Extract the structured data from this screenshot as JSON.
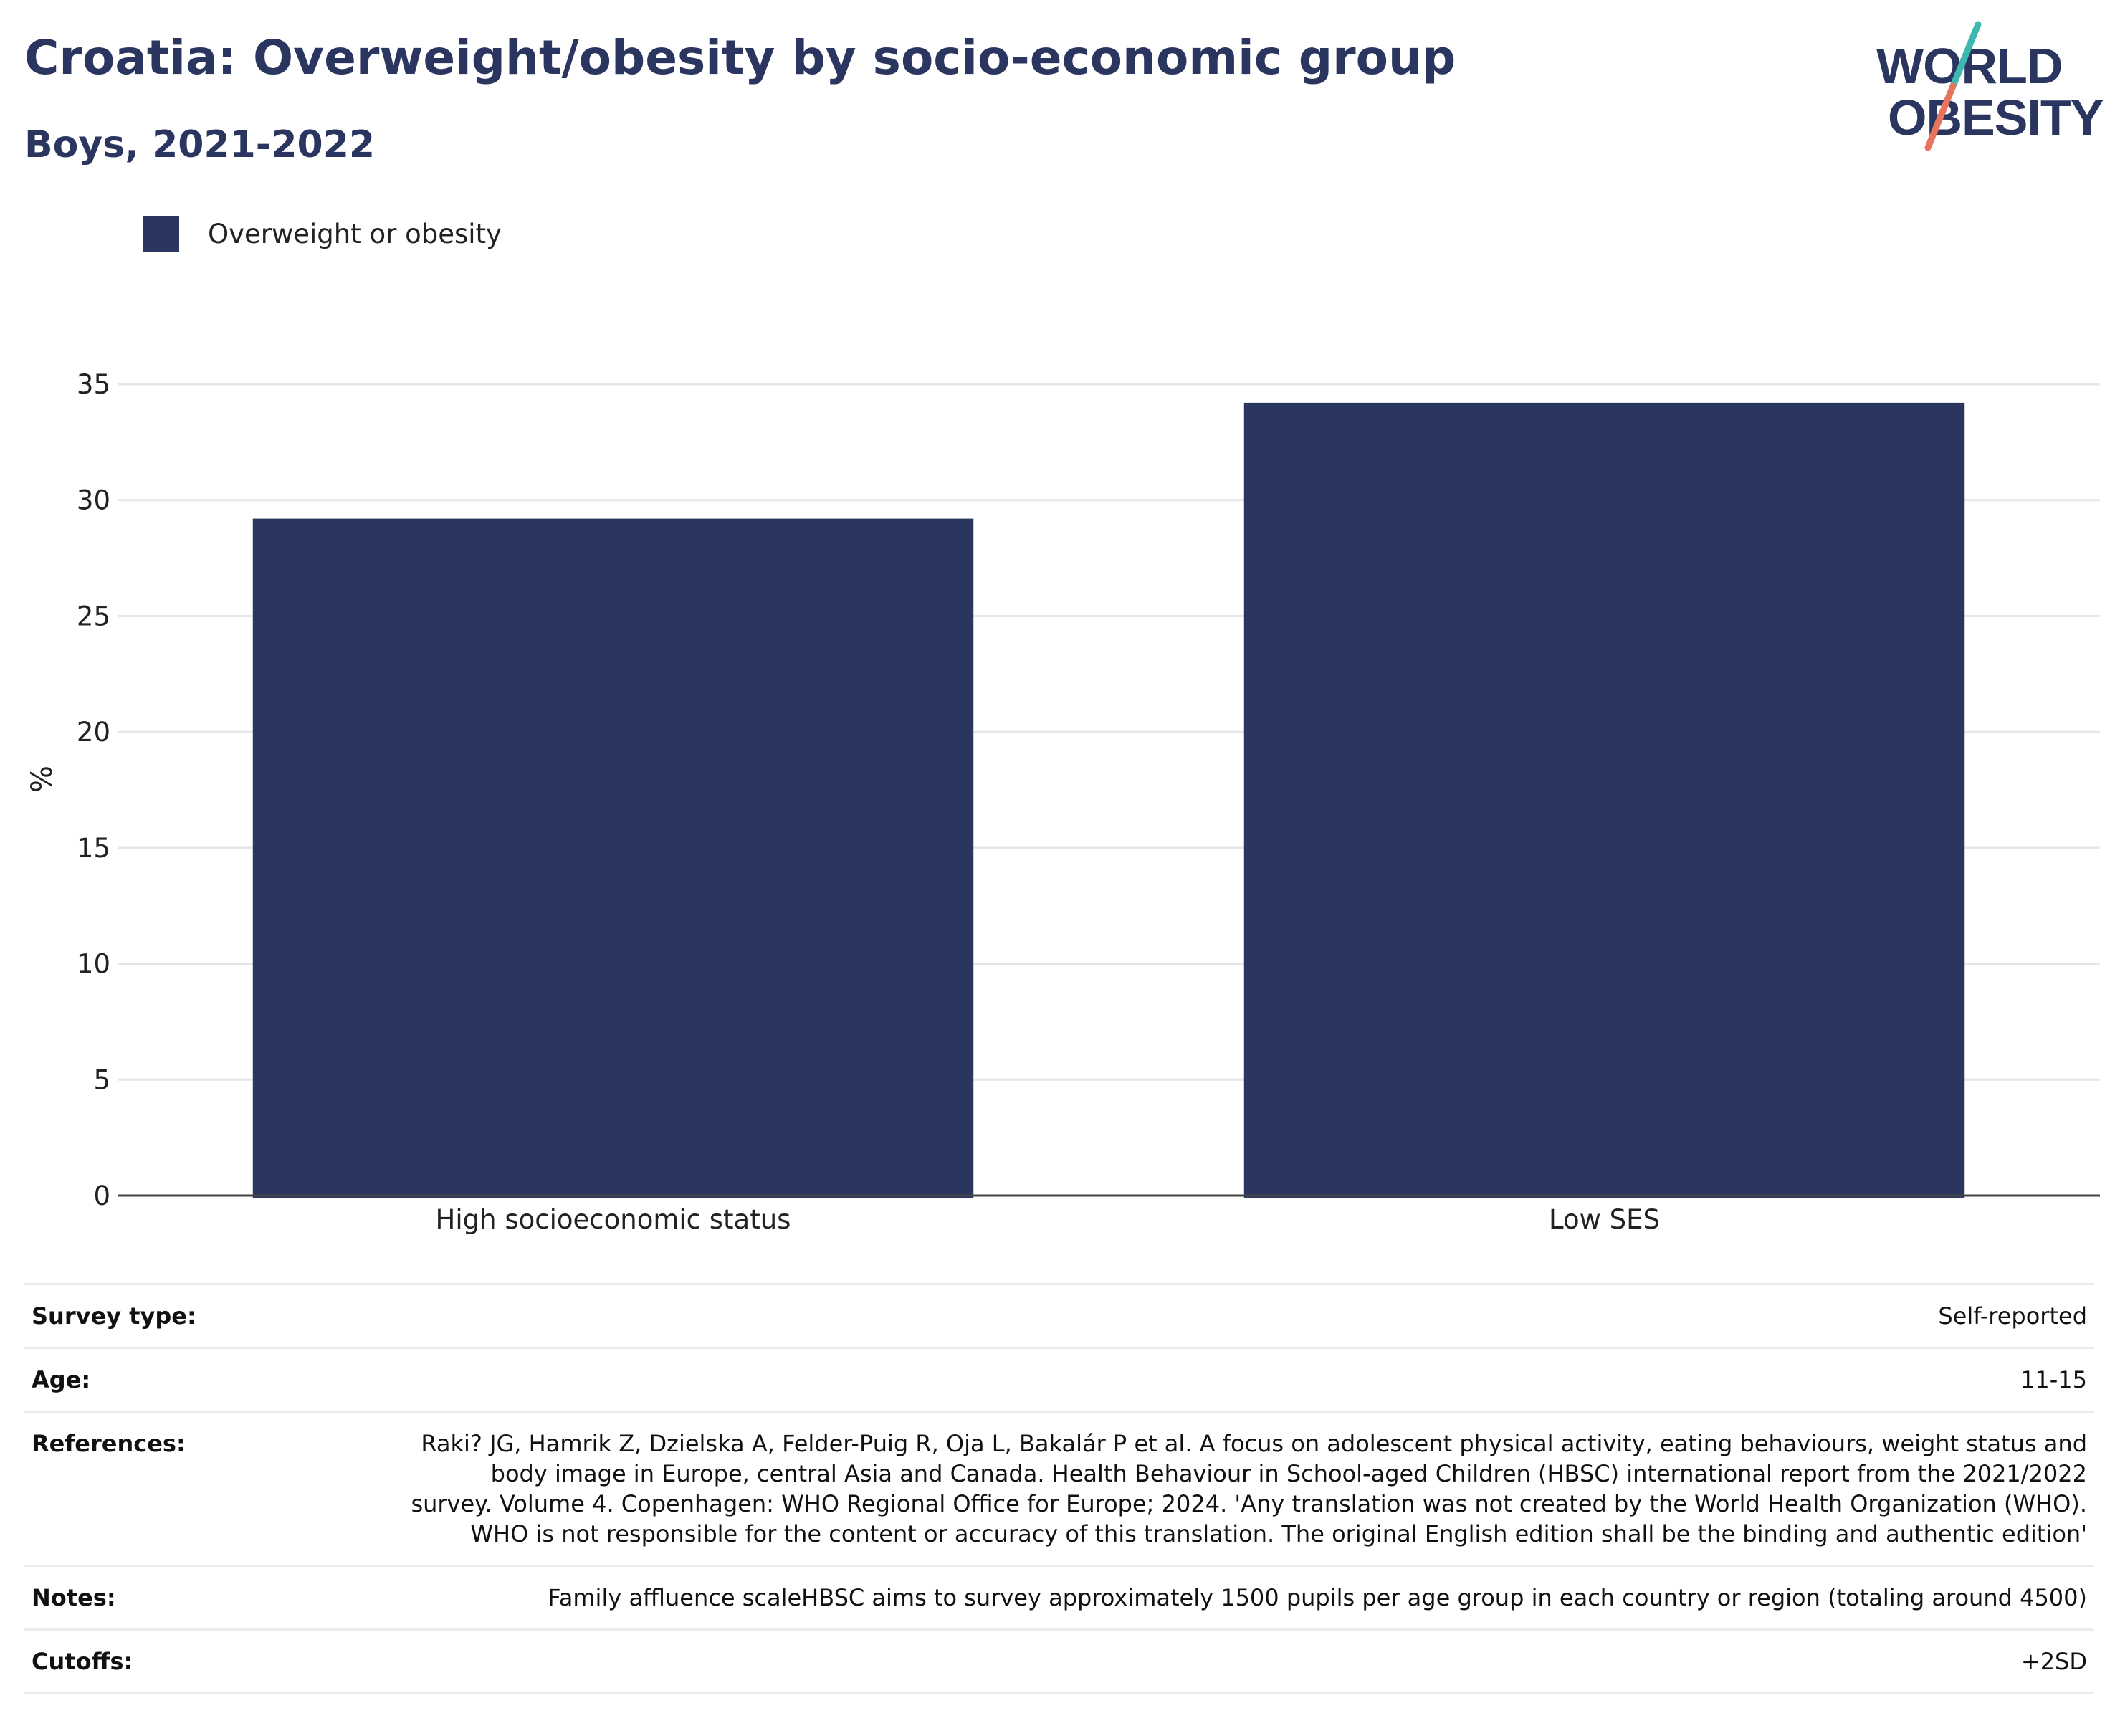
{
  "header": {
    "title": "Croatia: Overweight/obesity by socio-economic group",
    "subtitle": "Boys, 2021-2022"
  },
  "logo": {
    "line1": "WORLD",
    "line2": "OBESITY",
    "colors": {
      "text": "#2a365f",
      "slash_top": "#3fb8b0",
      "slash_bottom": "#e8735e"
    }
  },
  "legend": {
    "label": "Overweight or obesity",
    "color": "#2a365f"
  },
  "chart_data": {
    "type": "bar",
    "categories": [
      "High socioeconomic status",
      "Low SES"
    ],
    "series": [
      {
        "name": "Overweight or obesity",
        "values": [
          29.2,
          34.2
        ],
        "color": "#2a365f"
      }
    ],
    "xlabel": "",
    "ylabel": "%",
    "ylim": [
      0,
      35
    ],
    "yticks": [
      0,
      5,
      10,
      15,
      20,
      25,
      30,
      35
    ],
    "grid": true,
    "legend_position": "top-left"
  },
  "info": [
    {
      "key": "Survey type:",
      "value": "Self-reported"
    },
    {
      "key": "Age:",
      "value": "11-15"
    },
    {
      "key": "References:",
      "value": "Raki? JG, Hamrik Z, Dzielska A, Felder-Puig R, Oja L, Bakalár P et al. A focus on adolescent physical activity, eating behaviours, weight status and body image in Europe, central Asia and Canada. Health Behaviour in School-aged Children (HBSC) international report from the 2021/2022 survey. Volume 4. Copenhagen: WHO Regional Office for Europe; 2024. 'Any translation was not created by the World Health Organization (WHO). WHO is not responsible for the content or accuracy of this translation. The original English edition shall be the binding and authentic edition'"
    },
    {
      "key": "Notes:",
      "value": "Family affluence scaleHBSC aims to survey approximately 1500 pupils per age group in each country or region (totaling around 4500)"
    },
    {
      "key": "Cutoffs:",
      "value": "+2SD"
    }
  ]
}
